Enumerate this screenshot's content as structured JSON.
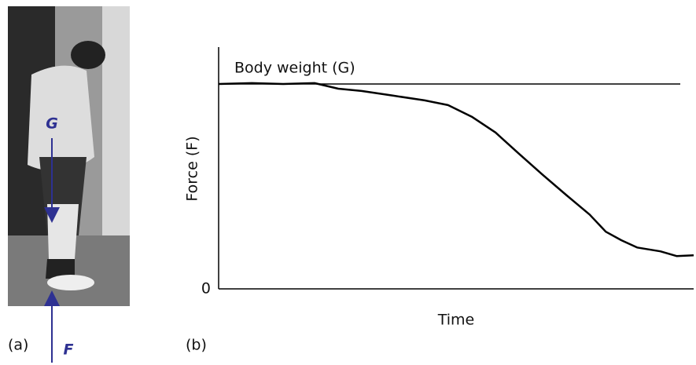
{
  "chart_data": {
    "type": "line",
    "x_label": "Time",
    "y_label": "Force (F)",
    "xlim": [
      0,
      1
    ],
    "ylim": [
      0,
      1.18
    ],
    "yticks": [
      0
    ],
    "x": [
      0,
      0.07,
      0.136,
      0.202,
      0.252,
      0.301,
      0.368,
      0.434,
      0.483,
      0.533,
      0.583,
      0.632,
      0.682,
      0.732,
      0.781,
      0.815,
      0.848,
      0.881,
      0.93,
      0.964,
      1
    ],
    "series": [
      {
        "color": "#000000",
        "values": [
          1.0,
          1.004,
          1.0,
          1.004,
          0.977,
          0.966,
          0.943,
          0.92,
          0.897,
          0.84,
          0.763,
          0.66,
          0.557,
          0.458,
          0.363,
          0.279,
          0.237,
          0.202,
          0.183,
          0.16,
          0.164
        ]
      }
    ],
    "reference_lines": [
      {
        "label": "Body weight (G)",
        "value": 1.0,
        "color": "#000000"
      }
    ],
    "panel_label": "(b)"
  },
  "photo": {
    "panel_label": "(a)",
    "arrow_down_label": "G",
    "arrow_up_label": "F"
  }
}
